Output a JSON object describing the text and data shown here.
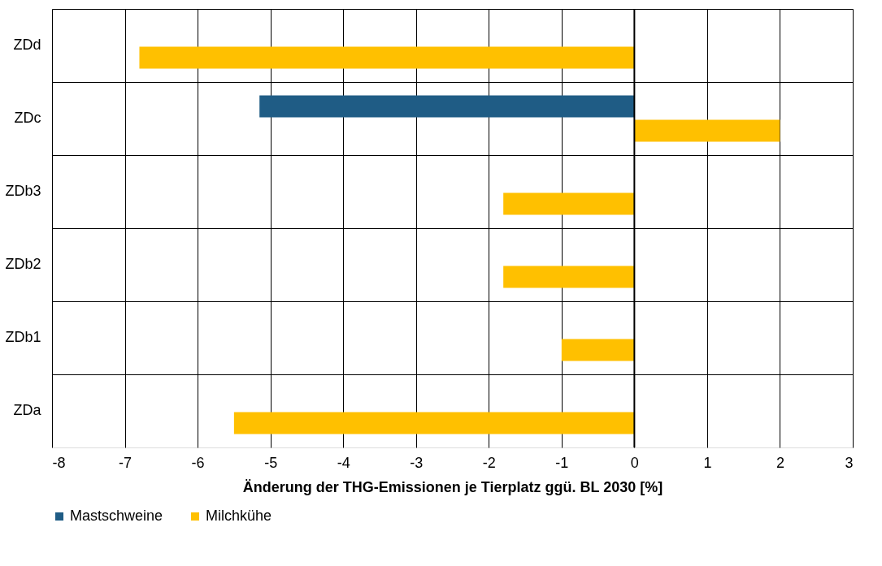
{
  "chart_data": {
    "type": "bar",
    "orientation": "horizontal",
    "xlabel": "Änderung der THG-Emissionen je Tierplatz ggü. BL 2030 [%]",
    "categories": [
      "ZDd",
      "ZDc",
      "ZDb3",
      "ZDb2",
      "ZDb1",
      "ZDa"
    ],
    "series": [
      {
        "name": "Mastschweine",
        "color": "#1f5c85",
        "values": [
          null,
          -5.15,
          null,
          null,
          null,
          null
        ]
      },
      {
        "name": "Milchkühe",
        "color": "#ffc000",
        "values": [
          -6.8,
          2.0,
          -1.8,
          -1.8,
          -1.0,
          -5.5
        ]
      }
    ],
    "xlim": [
      -8,
      3
    ],
    "xticks": [
      -8,
      -7,
      -6,
      -5,
      -4,
      -3,
      -2,
      -1,
      0,
      1,
      2,
      3
    ],
    "grid": true,
    "legend": "bottom"
  }
}
